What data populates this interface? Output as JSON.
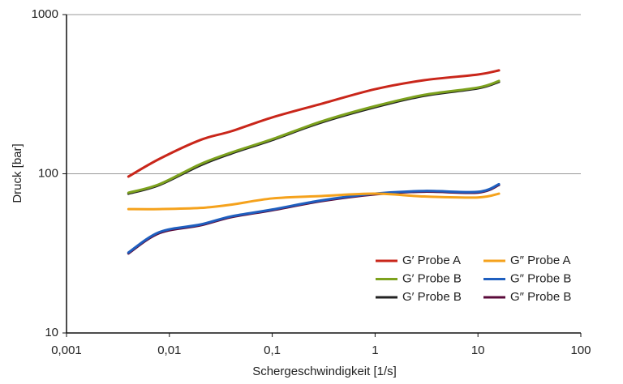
{
  "chart_data": {
    "type": "line",
    "xlabel": "Schergeschwindigkeit [1/s]",
    "ylabel": "Druck [bar]",
    "x": [
      0.004,
      0.008,
      0.02,
      0.04,
      0.1,
      0.3,
      1,
      3,
      10,
      16
    ],
    "series": [
      {
        "name": "G′ Probe A",
        "color": "#c9261a",
        "values": [
          96,
          124,
          163,
          185,
          226,
          275,
          340,
          387,
          420,
          446
        ]
      },
      {
        "name": "G′ Probe B",
        "color": "#7da21e",
        "values": [
          76,
          86,
          115,
          136,
          165,
          213,
          266,
          313,
          348,
          383
        ]
      },
      {
        "name": "G′ Probe B",
        "color": "#222222",
        "values": [
          75,
          85,
          113,
          134,
          163,
          210,
          262,
          309,
          344,
          378
        ]
      },
      {
        "name": "G″ Probe A",
        "color": "#f5a21c",
        "values": [
          60,
          60,
          61,
          64,
          70,
          72.5,
          75,
          72,
          71,
          75
        ]
      },
      {
        "name": "G″ Probe B",
        "color": "#1f5fbf",
        "values": [
          32,
          43,
          48,
          54,
          59.6,
          68,
          75,
          78,
          77,
          86
        ]
      },
      {
        "name": "G″ Probe B",
        "color": "#5a0a3a",
        "values": [
          31.6,
          42.4,
          47.4,
          53.4,
          59,
          67.3,
          74.3,
          77.2,
          76.2,
          85
        ]
      }
    ],
    "xlim": [
      0.001,
      100
    ],
    "ylim": [
      10,
      1000
    ],
    "xticks": [
      {
        "value": 0.001,
        "label": "0,001"
      },
      {
        "value": 0.01,
        "label": "0,01"
      },
      {
        "value": 0.1,
        "label": "0,1"
      },
      1,
      10,
      100
    ],
    "yticks": [
      10,
      100,
      1000
    ],
    "xscale": "log",
    "yscale": "log",
    "grid": true,
    "legend": "lower right"
  }
}
